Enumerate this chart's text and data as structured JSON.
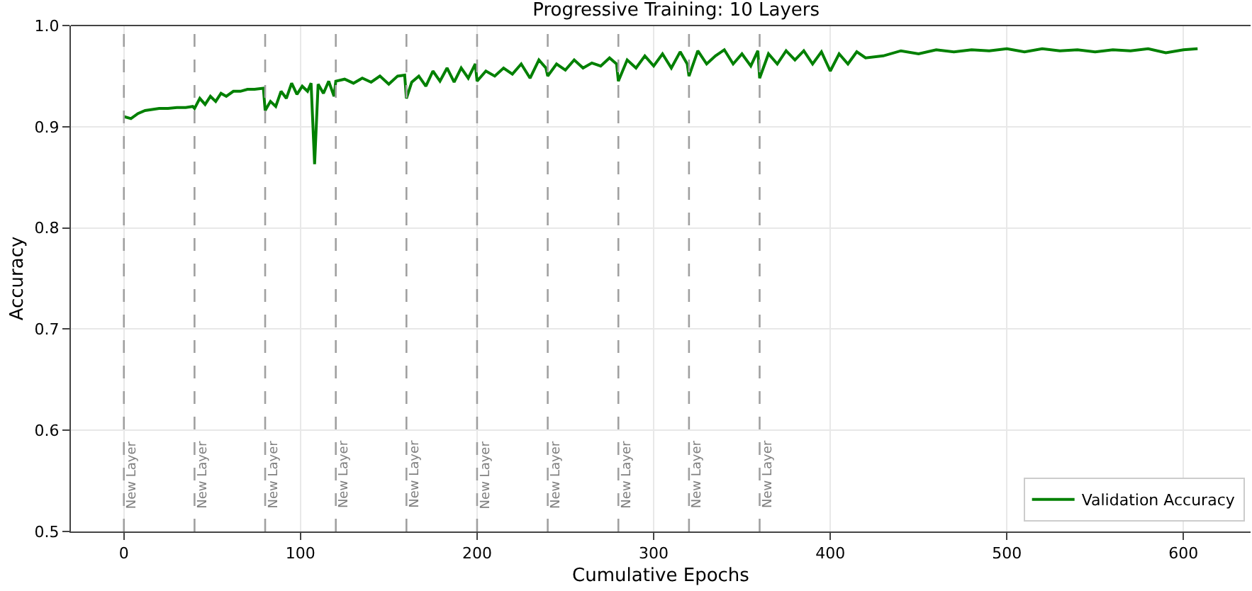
{
  "chart_data": {
    "type": "line",
    "title": "Progressive Training: 10 Layers",
    "xlabel": "Cumulative Epochs",
    "ylabel": "Accuracy",
    "xlim": [
      -30,
      638
    ],
    "ylim": [
      0.5,
      1.0
    ],
    "xticks": [
      0,
      100,
      200,
      300,
      400,
      500,
      600
    ],
    "yticks": [
      0.5,
      0.6,
      0.7,
      0.8,
      0.9,
      {
        "value": 1.0,
        "label": "1.0"
      }
    ],
    "grid": true,
    "legend": "bottom right",
    "marker": "none",
    "line_style": "solid",
    "series": [
      {
        "name": "Validation Accuracy",
        "color": "#008000",
        "x": [
          0,
          4,
          8,
          12,
          16,
          20,
          25,
          30,
          35,
          39,
          40,
          43,
          46,
          49,
          52,
          55,
          58,
          62,
          66,
          70,
          74,
          79,
          80,
          83,
          86,
          89,
          92,
          95,
          98,
          101,
          104,
          106,
          108,
          110,
          113,
          116,
          119,
          120,
          125,
          130,
          135,
          140,
          145,
          150,
          155,
          159,
          160,
          163,
          167,
          171,
          175,
          179,
          183,
          187,
          191,
          195,
          199,
          200,
          205,
          210,
          215,
          220,
          225,
          230,
          235,
          239,
          240,
          245,
          250,
          255,
          260,
          265,
          270,
          275,
          279,
          280,
          285,
          290,
          295,
          300,
          305,
          310,
          315,
          319,
          320,
          325,
          330,
          335,
          340,
          345,
          350,
          355,
          359,
          360,
          365,
          370,
          375,
          380,
          385,
          390,
          395,
          400,
          405,
          410,
          415,
          420,
          430,
          440,
          450,
          460,
          470,
          480,
          490,
          500,
          510,
          520,
          530,
          540,
          550,
          560,
          570,
          580,
          590,
          600,
          608
        ],
        "values": [
          0.91,
          0.908,
          0.913,
          0.916,
          0.917,
          0.918,
          0.918,
          0.919,
          0.919,
          0.92,
          0.918,
          0.928,
          0.922,
          0.93,
          0.925,
          0.933,
          0.93,
          0.935,
          0.935,
          0.937,
          0.937,
          0.938,
          0.916,
          0.925,
          0.92,
          0.935,
          0.928,
          0.943,
          0.932,
          0.94,
          0.935,
          0.943,
          0.863,
          0.942,
          0.933,
          0.945,
          0.93,
          0.945,
          0.947,
          0.943,
          0.948,
          0.944,
          0.95,
          0.942,
          0.95,
          0.951,
          0.928,
          0.944,
          0.95,
          0.94,
          0.955,
          0.945,
          0.958,
          0.944,
          0.958,
          0.948,
          0.962,
          0.945,
          0.955,
          0.95,
          0.958,
          0.952,
          0.962,
          0.948,
          0.966,
          0.958,
          0.95,
          0.962,
          0.956,
          0.966,
          0.958,
          0.963,
          0.96,
          0.968,
          0.962,
          0.945,
          0.966,
          0.958,
          0.97,
          0.96,
          0.972,
          0.958,
          0.974,
          0.962,
          0.95,
          0.975,
          0.962,
          0.97,
          0.976,
          0.962,
          0.972,
          0.96,
          0.975,
          0.948,
          0.972,
          0.962,
          0.975,
          0.966,
          0.975,
          0.962,
          0.974,
          0.955,
          0.972,
          0.962,
          0.974,
          0.968,
          0.97,
          0.975,
          0.972,
          0.976,
          0.974,
          0.976,
          0.975,
          0.977,
          0.974,
          0.977,
          0.975,
          0.976,
          0.974,
          0.976,
          0.975,
          0.977,
          0.973,
          0.976,
          0.977
        ]
      }
    ],
    "ref_lines": [
      {
        "axis": "x",
        "value": 0,
        "label": "New Layer",
        "color": "#a0a0a0",
        "line_style": "dashed"
      },
      {
        "axis": "x",
        "value": 40,
        "label": "New Layer",
        "color": "#a0a0a0",
        "line_style": "dashed"
      },
      {
        "axis": "x",
        "value": 80,
        "label": "New Layer",
        "color": "#a0a0a0",
        "line_style": "dashed"
      },
      {
        "axis": "x",
        "value": 120,
        "label": "New Layer",
        "color": "#a0a0a0",
        "line_style": "dashed"
      },
      {
        "axis": "x",
        "value": 160,
        "label": "New Layer",
        "color": "#a0a0a0",
        "line_style": "dashed"
      },
      {
        "axis": "x",
        "value": 200,
        "label": "New Layer",
        "color": "#a0a0a0",
        "line_style": "dashed"
      },
      {
        "axis": "x",
        "value": 240,
        "label": "New Layer",
        "color": "#a0a0a0",
        "line_style": "dashed"
      },
      {
        "axis": "x",
        "value": 280,
        "label": "New Layer",
        "color": "#a0a0a0",
        "line_style": "dashed"
      },
      {
        "axis": "x",
        "value": 320,
        "label": "New Layer",
        "color": "#a0a0a0",
        "line_style": "dashed"
      },
      {
        "axis": "x",
        "value": 360,
        "label": "New Layer",
        "color": "#a0a0a0",
        "line_style": "dashed"
      }
    ]
  }
}
